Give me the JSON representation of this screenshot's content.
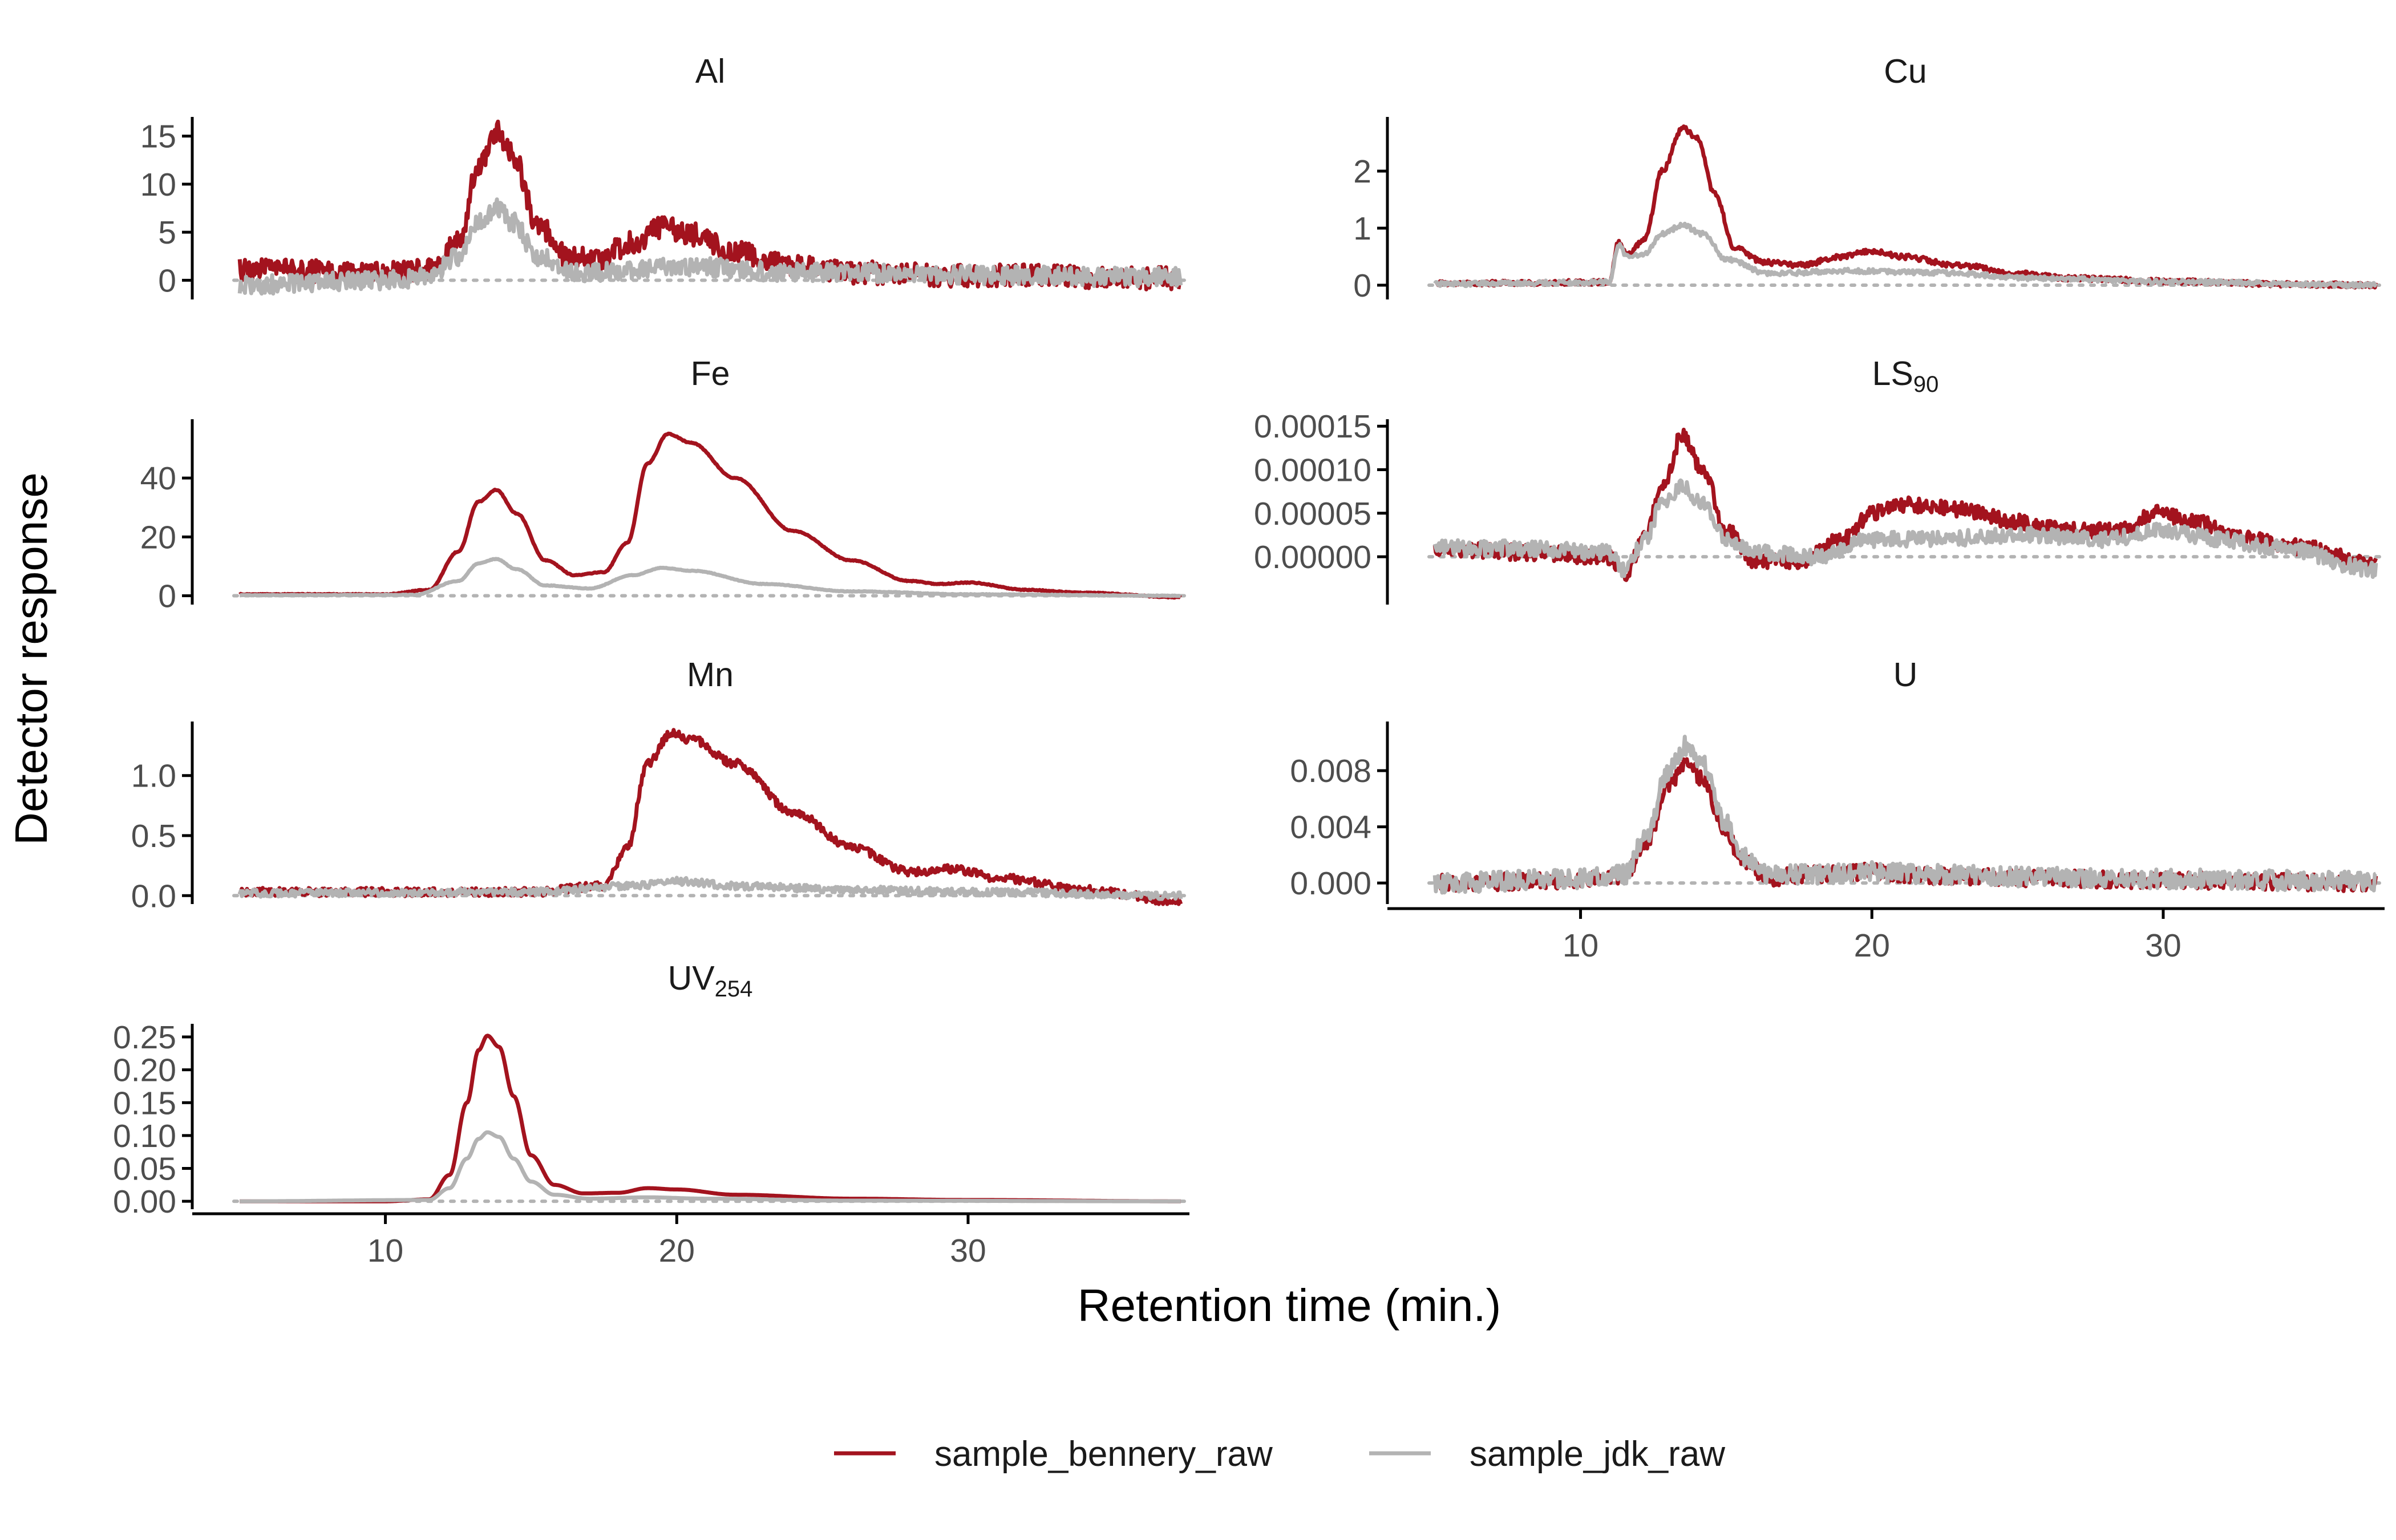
{
  "chart_data": {
    "type": "line",
    "facet": true,
    "xlabel": "Retention time (min.)",
    "ylabel": "Detector response",
    "xlim": [
      4.8,
      37.5
    ],
    "xticks": [
      10,
      20,
      30
    ],
    "grid": false,
    "zero_reference_line": "dotted grey",
    "legend": {
      "position": "bottom",
      "entries": [
        {
          "name": "sample_bennery_raw",
          "color": "#A3131E"
        },
        {
          "name": "sample_jdk_raw",
          "color": "#B3B3B3"
        }
      ]
    },
    "series_names": [
      "sample_bennery_raw",
      "sample_jdk_raw"
    ],
    "series_colors": {
      "sample_bennery_raw": "#A3131E",
      "sample_jdk_raw": "#B3B3B3"
    },
    "panels": [
      {
        "id": "Al",
        "title": "Al",
        "title_main": "Al",
        "title_sub": "",
        "ylim": [
          -2,
          17
        ],
        "yticks": [
          0,
          5,
          10,
          15
        ],
        "ytick_labels": [
          "0",
          "5",
          "10",
          "15"
        ],
        "x_axis_shown": false,
        "series": [
          {
            "name": "sample_bennery_raw",
            "baseline": 0.5,
            "noise": 1.2,
            "x": [
              5,
              10,
              11.5,
              12.5,
              13.2,
              13.8,
              14.4,
              15.2,
              16.2,
              17.2,
              18.5,
              19.5,
              20.5,
              22,
              24,
              26,
              30,
              37.3
            ],
            "y": [
              1.0,
              0.8,
              1.0,
              4.0,
              12.0,
              15.5,
              13.0,
              6.0,
              2.5,
              2.0,
              4.0,
              5.5,
              4.8,
              3.0,
              1.5,
              0.8,
              0.5,
              0.2
            ]
          },
          {
            "name": "sample_jdk_raw",
            "baseline": 0.0,
            "noise": 1.0,
            "x": [
              5,
              10,
              11.5,
              12.5,
              13.2,
              13.8,
              14.4,
              15.2,
              16.5,
              18,
              20,
              24,
              37.3
            ],
            "y": [
              -0.5,
              0.0,
              0.3,
              2.5,
              6.0,
              7.5,
              6.0,
              2.5,
              0.8,
              1.0,
              1.5,
              0.8,
              0.3
            ]
          }
        ]
      },
      {
        "id": "Fe",
        "title": "Fe",
        "title_main": "Fe",
        "title_sub": "",
        "ylim": [
          -3,
          60
        ],
        "yticks": [
          0,
          20,
          40
        ],
        "ytick_labels": [
          "0",
          "20",
          "40"
        ],
        "x_axis_shown": false,
        "series": [
          {
            "name": "sample_bennery_raw",
            "baseline": 0,
            "noise": 0.15,
            "x": [
              5,
              10,
              11.5,
              12.5,
              13.2,
              13.8,
              14.5,
              15.5,
              16.5,
              17.5,
              18.3,
              19.0,
              19.7,
              20.5,
              22,
              24,
              26,
              28,
              29,
              30,
              32,
              34,
              37.3
            ],
            "y": [
              0.5,
              0.5,
              2.0,
              15.0,
              32.0,
              36.0,
              28.0,
              12.0,
              7.0,
              8.0,
              18.0,
              45.0,
              55.0,
              52.0,
              40.0,
              22.0,
              12.0,
              5.0,
              4.0,
              4.5,
              2.0,
              1.0,
              -0.5
            ]
          },
          {
            "name": "sample_jdk_raw",
            "baseline": 0,
            "noise": 0.1,
            "x": [
              5,
              11,
              12.5,
              13.2,
              13.8,
              14.5,
              15.5,
              17,
              18.5,
              19.5,
              20.5,
              23,
              26,
              30,
              37.3
            ],
            "y": [
              0.2,
              0.3,
              5.0,
              11.0,
              12.5,
              9.0,
              3.5,
              2.5,
              7.0,
              9.5,
              8.5,
              4.0,
              1.5,
              0.5,
              0.0
            ]
          }
        ]
      },
      {
        "id": "Mn",
        "title": "Mn",
        "title_main": "Mn",
        "title_sub": "",
        "ylim": [
          -0.07,
          1.45
        ],
        "yticks": [
          0.0,
          0.5,
          1.0
        ],
        "ytick_labels": [
          "0.0",
          "0.5",
          "1.0"
        ],
        "x_axis_shown": false,
        "series": [
          {
            "name": "sample_bennery_raw",
            "baseline": 0,
            "noise": 0.035,
            "x": [
              5,
              10,
              15,
              17.5,
              18.3,
              19.0,
              19.8,
              20.5,
              22,
              24,
              26,
              28,
              29.5,
              31,
              34,
              37.3
            ],
            "y": [
              0.03,
              0.03,
              0.03,
              0.08,
              0.4,
              1.1,
              1.35,
              1.3,
              1.1,
              0.7,
              0.4,
              0.2,
              0.22,
              0.15,
              0.05,
              -0.05
            ]
          },
          {
            "name": "sample_jdk_raw",
            "baseline": 0,
            "noise": 0.03,
            "x": [
              5,
              15,
              18.5,
              20,
              22,
              26,
              30,
              37.3
            ],
            "y": [
              0.02,
              0.03,
              0.08,
              0.12,
              0.08,
              0.05,
              0.03,
              0.0
            ]
          }
        ]
      },
      {
        "id": "UV254",
        "title": "UV254",
        "title_main": "UV",
        "title_sub": "254",
        "ylim": [
          -0.012,
          0.27
        ],
        "yticks": [
          0.0,
          0.05,
          0.1,
          0.15,
          0.2,
          0.25
        ],
        "ytick_labels": [
          "0.00",
          "0.05",
          "0.10",
          "0.15",
          "0.20",
          "0.25"
        ],
        "x_axis_shown": true,
        "series": [
          {
            "name": "sample_bennery_raw",
            "baseline": 0,
            "noise": 0,
            "x": [
              5,
              10,
              11.5,
              12.2,
              12.8,
              13.2,
              13.5,
              13.9,
              14.4,
              15.0,
              15.8,
              16.8,
              18,
              19,
              20,
              22,
              26,
              30,
              37.3
            ],
            "y": [
              0,
              0,
              0.003,
              0.04,
              0.15,
              0.23,
              0.252,
              0.235,
              0.16,
              0.07,
              0.025,
              0.012,
              0.013,
              0.02,
              0.018,
              0.01,
              0.004,
              0.002,
              0.0
            ]
          },
          {
            "name": "sample_jdk_raw",
            "baseline": 0,
            "noise": 0,
            "x": [
              5,
              11.5,
              12.2,
              12.8,
              13.2,
              13.5,
              13.9,
              14.4,
              15.0,
              15.8,
              17,
              19,
              21,
              26,
              37.3
            ],
            "y": [
              0,
              0.002,
              0.02,
              0.065,
              0.095,
              0.105,
              0.098,
              0.065,
              0.03,
              0.01,
              0.004,
              0.006,
              0.004,
              0.001,
              0.0
            ]
          }
        ]
      },
      {
        "id": "Cu",
        "title": "Cu",
        "title_main": "Cu",
        "title_sub": "",
        "ylim": [
          -0.25,
          2.95
        ],
        "yticks": [
          0,
          1,
          2
        ],
        "ytick_labels": [
          "0",
          "1",
          "2"
        ],
        "x_axis_shown": false,
        "series": [
          {
            "name": "sample_bennery_raw",
            "baseline": 0,
            "noise": 0.045,
            "x": [
              5,
              11.0,
              11.3,
              11.6,
              12.2,
              12.8,
              13.5,
              14.0,
              14.6,
              15.3,
              16.3,
              17.5,
              19,
              20,
              21,
              23,
              25,
              27,
              30,
              34,
              37.3
            ],
            "y": [
              0.03,
              0.05,
              0.75,
              0.55,
              0.8,
              2.0,
              2.75,
              2.6,
              1.6,
              0.65,
              0.4,
              0.35,
              0.5,
              0.6,
              0.5,
              0.35,
              0.2,
              0.12,
              0.07,
              0.02,
              0.0
            ]
          },
          {
            "name": "sample_jdk_raw",
            "baseline": 0,
            "noise": 0.04,
            "x": [
              5,
              11.0,
              11.3,
              11.6,
              12.2,
              12.8,
              13.5,
              14.2,
              15.0,
              16.5,
              19,
              22,
              26,
              30,
              37.3
            ],
            "y": [
              0.02,
              0.05,
              0.7,
              0.5,
              0.55,
              0.9,
              1.05,
              0.9,
              0.45,
              0.2,
              0.25,
              0.22,
              0.12,
              0.06,
              0.0
            ]
          }
        ]
      },
      {
        "id": "LS90",
        "title": "LS90",
        "title_main": "LS",
        "title_sub": "90",
        "ylim": [
          -5.5e-05,
          0.000158
        ],
        "yticks": [
          0.0,
          5e-05,
          0.0001,
          0.00015
        ],
        "ytick_labels": [
          "0.00000",
          "0.00005",
          "0.00010",
          "0.00015"
        ],
        "x_axis_shown": false,
        "series": [
          {
            "name": "sample_bennery_raw",
            "baseline": 0,
            "noise": 9e-06,
            "x": [
              5,
              8,
              11,
              11.5,
              12.2,
              12.8,
              13.5,
              14.2,
              15.0,
              16.0,
              17.5,
              19.0,
              20.0,
              21.0,
              23,
              25,
              27,
              28.5,
              29.8,
              31,
              33,
              35,
              37.3
            ],
            "y": [
              1e-05,
              5e-06,
              0.0,
              -2e-05,
              2e-05,
              8e-05,
              0.00014,
              0.0001,
              3e-05,
              -5e-06,
              -5e-06,
              2e-05,
              5e-05,
              6e-05,
              5.5e-05,
              4e-05,
              3e-05,
              3e-05,
              5e-05,
              4e-05,
              2e-05,
              1e-05,
              -1e-05
            ]
          },
          {
            "name": "sample_jdk_raw",
            "baseline": 0,
            "noise": 9e-06,
            "x": [
              5,
              8,
              11,
              11.5,
              12.2,
              12.8,
              13.5,
              14.2,
              15.0,
              16.0,
              18,
              20,
              22,
              25,
              28,
              30,
              32,
              34,
              37.3
            ],
            "y": [
              1e-05,
              1e-05,
              5e-06,
              -1.5e-05,
              2e-05,
              6e-05,
              8e-05,
              6e-05,
              2e-05,
              5e-06,
              0.0,
              2e-05,
              2e-05,
              2.5e-05,
              2e-05,
              3e-05,
              2e-05,
              1e-05,
              -1.5e-05
            ]
          }
        ]
      },
      {
        "id": "U",
        "title": "U",
        "title_main": "U",
        "title_sub": "",
        "ylim": [
          -0.0015,
          0.0115
        ],
        "yticks": [
          0.0,
          0.004,
          0.008
        ],
        "ytick_labels": [
          "0.000",
          "0.004",
          "0.008"
        ],
        "x_axis_shown": true,
        "series": [
          {
            "name": "sample_bennery_raw",
            "baseline": 0,
            "noise": 0.0006,
            "x": [
              5,
              10,
              11.5,
              12.3,
              13.0,
              13.6,
              14.2,
              14.9,
              15.6,
              16.5,
              18,
              20,
              22,
              26,
              30,
              37.3
            ],
            "y": [
              0.0,
              0.0002,
              0.0005,
              0.003,
              0.007,
              0.0085,
              0.0075,
              0.004,
              0.0015,
              0.0004,
              0.0006,
              0.0008,
              0.0005,
              0.0003,
              0.0002,
              0.0
            ]
          },
          {
            "name": "sample_jdk_raw",
            "baseline": 0,
            "noise": 0.0007,
            "x": [
              5,
              10,
              11.5,
              12.3,
              13.0,
              13.6,
              14.2,
              14.9,
              15.6,
              16.5,
              18,
              20,
              22,
              26,
              30,
              37.3
            ],
            "y": [
              0.0,
              0.0003,
              0.0006,
              0.0035,
              0.008,
              0.0098,
              0.0085,
              0.0045,
              0.0018,
              0.0006,
              0.0006,
              0.0008,
              0.0006,
              0.0004,
              0.0003,
              0.0001
            ]
          }
        ]
      }
    ]
  }
}
